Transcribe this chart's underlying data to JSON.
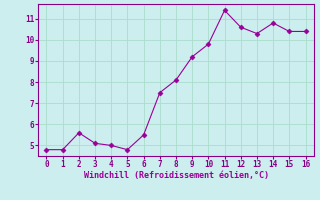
{
  "x": [
    0,
    1,
    2,
    3,
    4,
    5,
    6,
    7,
    8,
    9,
    10,
    11,
    12,
    13,
    14,
    15,
    16
  ],
  "y": [
    4.8,
    4.8,
    5.6,
    5.1,
    5.0,
    4.8,
    5.5,
    7.5,
    8.1,
    9.2,
    9.8,
    11.4,
    10.6,
    10.3,
    10.8,
    10.4,
    10.4
  ],
  "line_color": "#990099",
  "marker": "D",
  "marker_size": 2.5,
  "bg_color": "#cceeee",
  "grid_color": "#aaddcc",
  "xlabel": "Windchill (Refroidissement éolien,°C)",
  "xlim": [
    -0.5,
    16.5
  ],
  "ylim": [
    4.5,
    11.7
  ],
  "xticks": [
    0,
    1,
    2,
    3,
    4,
    5,
    6,
    7,
    8,
    9,
    10,
    11,
    12,
    13,
    14,
    15,
    16
  ],
  "yticks": [
    5,
    6,
    7,
    8,
    9,
    10,
    11
  ],
  "spine_color": "#880088",
  "tick_color": "#880088",
  "font_color": "#990099"
}
